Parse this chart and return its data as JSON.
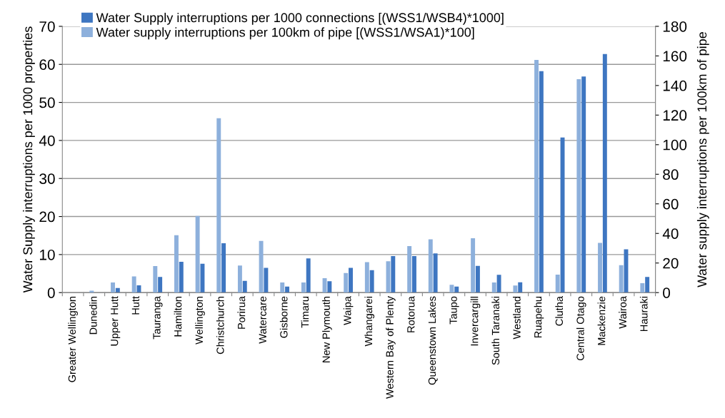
{
  "chart_data": {
    "type": "bar",
    "categories": [
      "Greater Wellington",
      "Dunedin",
      "Upper Hutt",
      "Hutt",
      "Tauranga",
      "Hamilton",
      "Wellington",
      "Christchurch",
      "Porirua",
      "Watercare",
      "Gisborne",
      "Timaru",
      "New Plymouth",
      "Waipa",
      "Whangarei",
      "Western Bay of Plenty",
      "Rotorua",
      "Queenstown Lakes",
      "Taupo",
      "Invercargill",
      "South Taranaki",
      "Westland",
      "Ruapehu",
      "Clutha",
      "Central Otago",
      "Mackenzie",
      "Wairoa",
      "Hauraki"
    ],
    "series": [
      {
        "name": "Water supply interruptions per 100km of pipe [(WSS1/WSA1)*100]",
        "color": "#8db0dc",
        "axis": "y2",
        "values": [
          0,
          1.3,
          6.9,
          10.9,
          17.9,
          38.8,
          51.8,
          117.9,
          18.3,
          34.9,
          6.8,
          6.8,
          9.8,
          13.2,
          20.6,
          21.2,
          31.4,
          36.0,
          5.3,
          36.7,
          6.9,
          4.8,
          157.3,
          12.1,
          144.3,
          33.6,
          18.5,
          6.4
        ]
      },
      {
        "name": "Water Supply interruptions per 1000 connections [(WSS1/WSB4)*1000]",
        "color": "#3e76c1",
        "values": [
          0,
          0,
          1.2,
          1.9,
          4.1,
          8.1,
          7.6,
          13.0,
          3.1,
          6.5,
          1.6,
          9.0,
          3.0,
          6.5,
          5.9,
          9.6,
          9.6,
          10.3,
          1.6,
          7.0,
          4.7,
          2.7,
          58.2,
          40.8,
          56.8,
          62.7,
          11.4,
          4.1
        ]
      }
    ],
    "ylabel": "Water Supply interruptions per 1000 properties",
    "y2label": "Water supply interruptions per 100km of pipe",
    "ylim": [
      0,
      70
    ],
    "yticks": [
      0,
      10,
      20,
      30,
      40,
      50,
      60,
      70
    ],
    "y2lim": [
      0,
      180
    ],
    "y2ticks": [
      0,
      20,
      40,
      60,
      80,
      100,
      120,
      140,
      160,
      180
    ],
    "grid": "y",
    "legend": "top"
  }
}
